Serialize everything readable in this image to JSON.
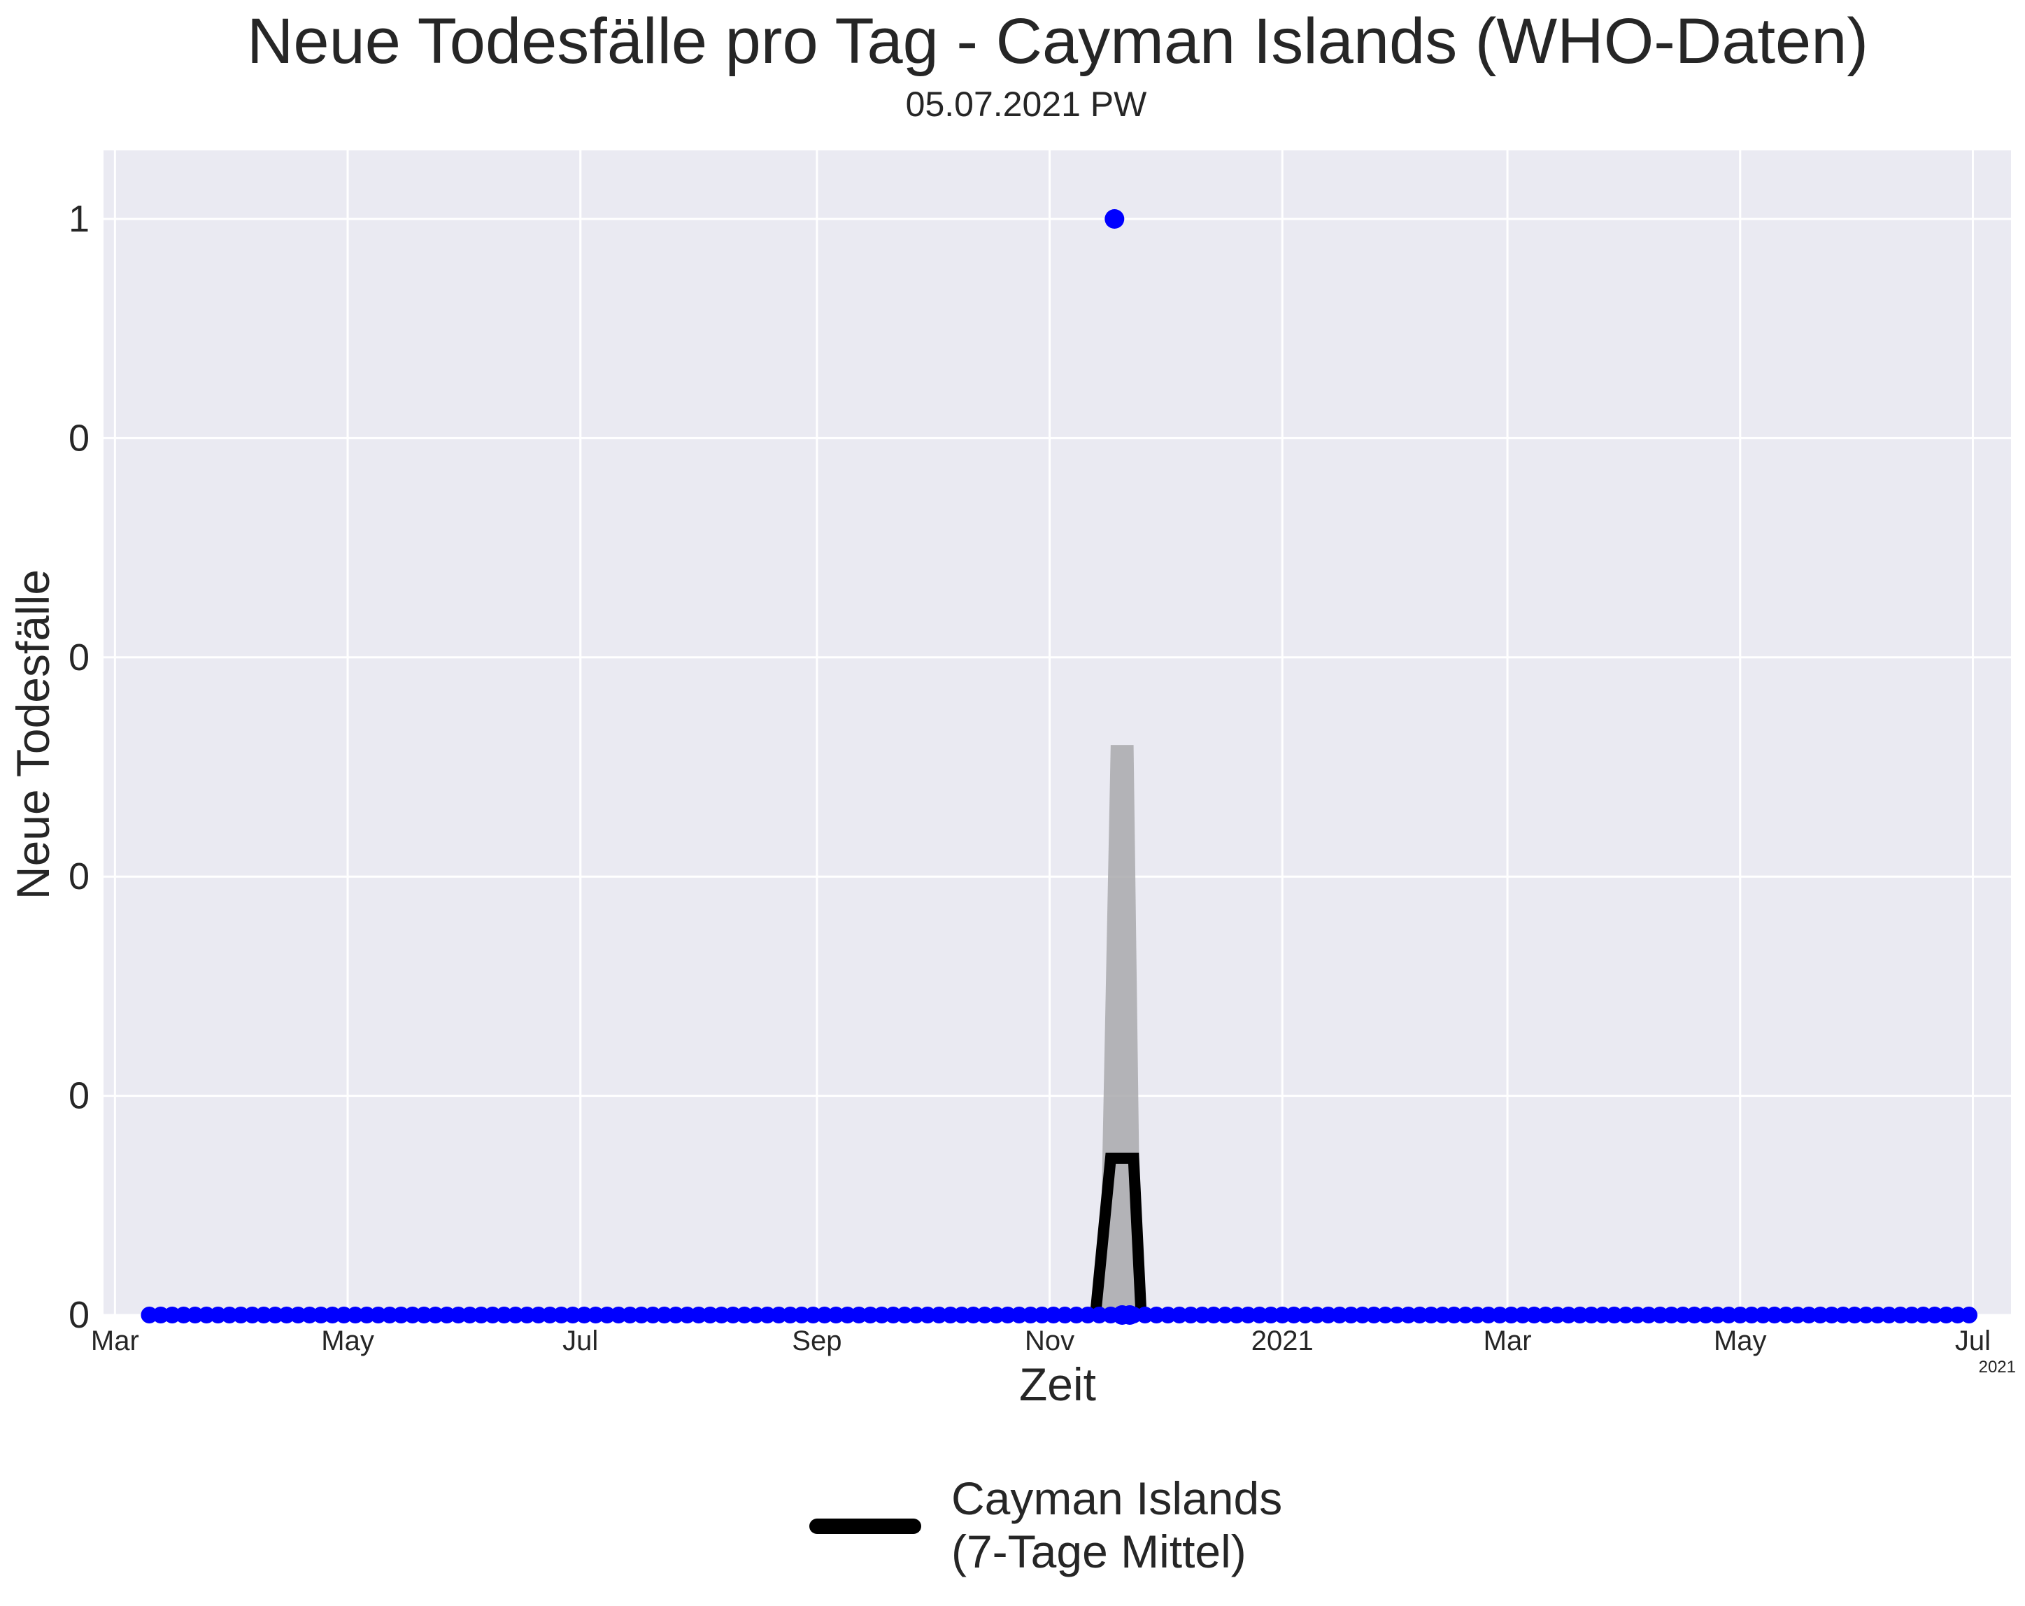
{
  "chart_data": {
    "type": "line",
    "title": "Neue Todesfälle pro Tag - Cayman Islands (WHO-Daten)",
    "subtitle": "05.07.2021 PW",
    "xlabel": "Zeit",
    "ylabel": "Neue Todesfälle",
    "x_range": [
      "2020-02-27",
      "2021-07-11"
    ],
    "y_range": [
      0,
      1.06
    ],
    "x_ticks": [
      {
        "date": "2020-03-01",
        "label": "Mar"
      },
      {
        "date": "2020-05-01",
        "label": "May"
      },
      {
        "date": "2020-07-01",
        "label": "Jul"
      },
      {
        "date": "2020-09-01",
        "label": "Sep"
      },
      {
        "date": "2020-11-01",
        "label": "Nov"
      },
      {
        "date": "2021-01-01",
        "label": "2021"
      },
      {
        "date": "2021-03-01",
        "label": "Mar"
      },
      {
        "date": "2021-05-01",
        "label": "May"
      },
      {
        "date": "2021-07-01",
        "label": "Jul"
      }
    ],
    "x_offset_label": "2021",
    "y_ticks": [
      {
        "value": 0,
        "label": "0"
      },
      {
        "value": 0.2,
        "label": "0"
      },
      {
        "value": 0.4,
        "label": "0"
      },
      {
        "value": 0.6,
        "label": "0"
      },
      {
        "value": 0.8,
        "label": "0"
      },
      {
        "value": 1,
        "label": "1"
      }
    ],
    "grid": true,
    "legend_position": "bottom-center",
    "series": [
      {
        "name": "Cayman Islands\n(7-Tage Mittel)",
        "kind": "line",
        "color": "#000000",
        "points": [
          {
            "x": "2020-03-10",
            "y": 0
          },
          {
            "x": "2020-11-13",
            "y": 0
          },
          {
            "x": "2020-11-17",
            "y": 0.143
          },
          {
            "x": "2020-11-23",
            "y": 0.143
          },
          {
            "x": "2020-11-25",
            "y": 0
          },
          {
            "x": "2021-07-01",
            "y": 0
          }
        ]
      },
      {
        "kind": "band",
        "color": "#a9a9ad",
        "points": [
          {
            "x": "2020-11-14",
            "lo": 0,
            "hi": 0
          },
          {
            "x": "2020-11-17",
            "lo": 0,
            "hi": 0.52
          },
          {
            "x": "2020-11-23",
            "lo": 0,
            "hi": 0.52
          },
          {
            "x": "2020-11-25",
            "lo": 0,
            "hi": 0
          }
        ]
      },
      {
        "kind": "scatter",
        "color": "#0000ff",
        "points": [
          {
            "x": "2020-11-18",
            "y": 1
          },
          {
            "x": "2020-11-20",
            "y": 0
          },
          {
            "x": "2020-11-22",
            "y": 0
          }
        ],
        "zero_range": [
          "2020-03-10",
          "2021-07-01"
        ]
      }
    ]
  }
}
